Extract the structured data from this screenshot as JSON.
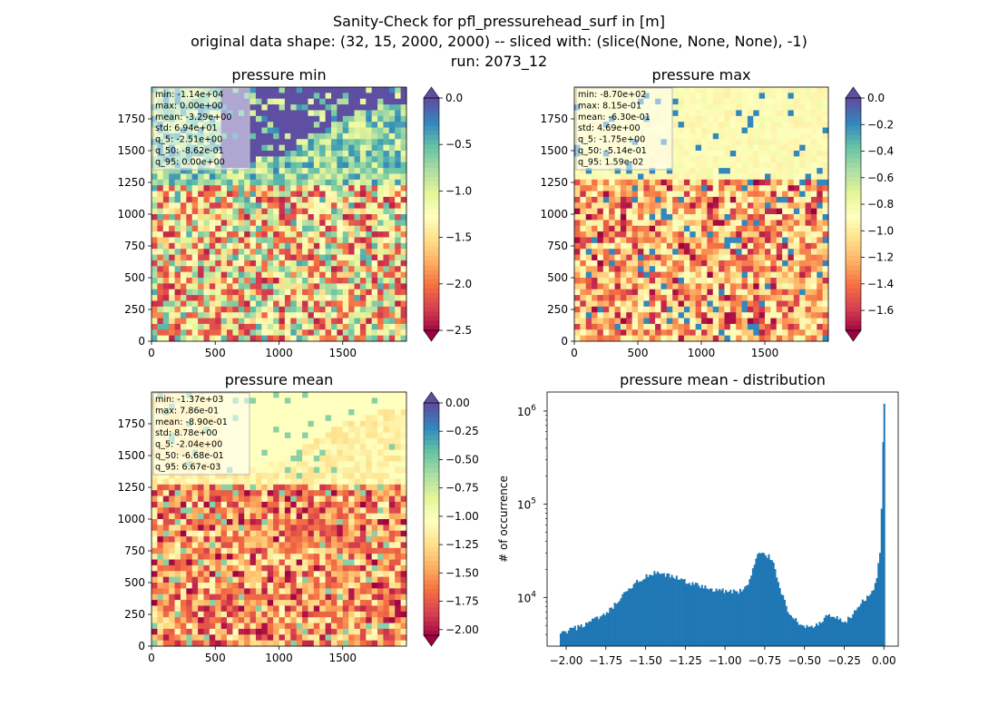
{
  "figure": {
    "title_lines": [
      "Sanity-Check for pfl_pressurehead_surf in [m]",
      "original data shape: (32, 15, 2000, 2000) -- sliced with: (slice(None, None, None), -1)",
      "run: 2073_12"
    ]
  },
  "panels": [
    {
      "title": "pressure min",
      "stats": [
        "min: -1.14e+04",
        "max: 0.00e+00",
        "mean: -3.29e+00",
        "std: 6.94e+01",
        "q_5: -2.51e+00",
        "q_50: -8.62e-01",
        "q_95: 0.00e+00"
      ],
      "xticks": [
        "0",
        "500",
        "1000",
        "1500"
      ],
      "yticks": [
        "0",
        "250",
        "500",
        "750",
        "1000",
        "1250",
        "1500",
        "1750"
      ],
      "colorbar": {
        "range": [
          -2.5,
          0.0
        ],
        "ticks": [
          "0.0",
          "−0.5",
          "−1.0",
          "−1.5",
          "−2.0",
          "−2.5"
        ],
        "extend": "both"
      }
    },
    {
      "title": "pressure max",
      "stats": [
        "min: -8.70e+02",
        "max: 8.15e-01",
        "mean: -6.30e-01",
        "std: 4.69e+00",
        "q_5: -1.75e+00",
        "q_50: -5.14e-01",
        "q_95: 1.59e-02"
      ],
      "xticks": [
        "0",
        "500",
        "1000",
        "1500"
      ],
      "yticks": [
        "0",
        "250",
        "500",
        "750",
        "1000",
        "1250",
        "1500",
        "1750"
      ],
      "colorbar": {
        "range": [
          -1.75,
          0.0
        ],
        "ticks": [
          "0.0",
          "−0.2",
          "−0.4",
          "−0.6",
          "−0.8",
          "−1.0",
          "−1.2",
          "−1.4",
          "−1.6"
        ],
        "extend": "both"
      }
    },
    {
      "title": "pressure mean",
      "stats": [
        "min: -1.37e+03",
        "max: 7.86e-01",
        "mean: -8.90e-01",
        "std: 8.78e+00",
        "q_5: -2.04e+00",
        "q_50: -6.68e-01",
        "q_95: 6.67e-03"
      ],
      "xticks": [
        "0",
        "500",
        "1000",
        "1500"
      ],
      "yticks": [
        "0",
        "250",
        "500",
        "750",
        "1000",
        "1250",
        "1500",
        "1750"
      ],
      "colorbar": {
        "range": [
          -2.05,
          0.0
        ],
        "ticks": [
          "0.00",
          "−0.25",
          "−0.50",
          "−0.75",
          "−1.00",
          "−1.25",
          "−1.50",
          "−1.75",
          "−2.00"
        ],
        "extend": "both"
      }
    }
  ],
  "colors": {
    "spectral": [
      "#9e0142",
      "#d53e4f",
      "#f46d43",
      "#fdae61",
      "#fee08b",
      "#ffffbf",
      "#e6f598",
      "#abdda4",
      "#66c2a5",
      "#3288bd",
      "#5e4fa2"
    ],
    "hist_bar": "#1f77b4"
  },
  "chart_data": {
    "type": "bar",
    "title": "pressure mean - distribution",
    "xlabel": "",
    "ylabel": "# of occurrence",
    "xlim": [
      -2.12,
      0.09
    ],
    "ylim": [
      3000,
      1600000
    ],
    "yscale": "log",
    "xticks": [
      "−2.00",
      "−1.75",
      "−1.50",
      "−1.25",
      "−1.00",
      "−0.75",
      "−0.50",
      "−0.25",
      "0.00"
    ],
    "xtick_values": [
      -2.0,
      -1.75,
      -1.5,
      -1.25,
      -1.0,
      -0.75,
      -0.5,
      -0.25,
      0.0
    ],
    "yticks": [
      "10",
      "10",
      "10"
    ],
    "ytick_exponents": [
      "4",
      "5",
      "6"
    ],
    "ytick_values": [
      10000,
      100000,
      1000000
    ],
    "x": [
      -2.04,
      -1.9,
      -1.75,
      -1.65,
      -1.55,
      -1.45,
      -1.35,
      -1.25,
      -1.15,
      -1.05,
      -0.95,
      -0.9,
      -0.85,
      -0.8,
      -0.75,
      -0.7,
      -0.65,
      -0.6,
      -0.55,
      -0.5,
      -0.45,
      -0.4,
      -0.35,
      -0.3,
      -0.25,
      -0.2,
      -0.15,
      -0.1,
      -0.05,
      -0.02,
      0.0
    ],
    "values": [
      4000,
      5000,
      6500,
      10000,
      15000,
      18000,
      17000,
      15000,
      13000,
      12000,
      11500,
      11800,
      14000,
      28000,
      30000,
      25000,
      12000,
      7000,
      5500,
      4900,
      4900,
      5200,
      6500,
      6000,
      5200,
      6500,
      8500,
      10000,
      14000,
      35000,
      1200000
    ]
  }
}
